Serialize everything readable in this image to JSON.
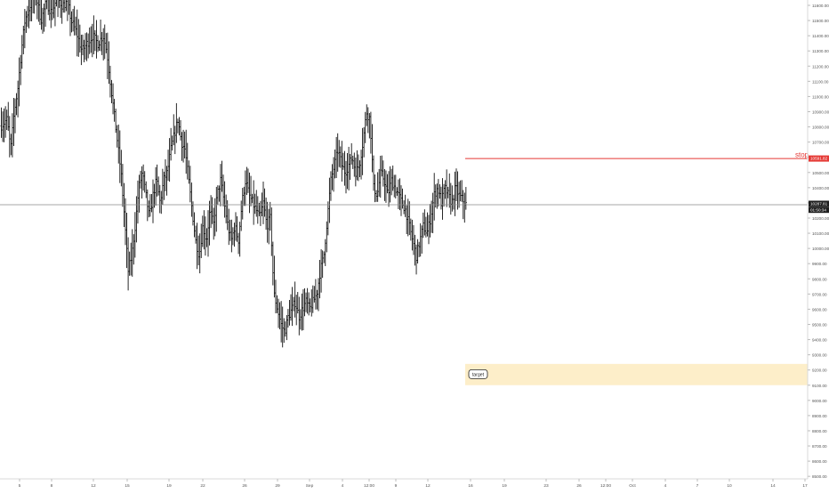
{
  "chart_data": {
    "type": "ohlc",
    "title": "",
    "xlabel": "",
    "ylabel": "",
    "x_tick_labels": [
      "5",
      "8",
      "12",
      "15",
      "19",
      "22",
      "26",
      "29",
      "Sep",
      "4",
      "12:00",
      "9",
      "12",
      "16",
      "19",
      "23",
      "26",
      "12:00",
      "Oct",
      "4",
      "7",
      "10",
      "14",
      "17"
    ],
    "y_tick_labels": [
      "11600.00",
      "11500.00",
      "11400.00",
      "11300.00",
      "11200.00",
      "11100.00",
      "11000.00",
      "10900.00",
      "10800.00",
      "10700.00",
      "10600.00",
      "10500.00",
      "10400.00",
      "10300.00",
      "10200.00",
      "10100.00",
      "10000.00",
      "9900.00",
      "9800.00",
      "9700.00",
      "9600.00",
      "9500.00",
      "9400.00",
      "9300.00",
      "9200.00",
      "9100.00",
      "9000.00",
      "8900.00",
      "8800.00",
      "8700.00",
      "8600.00",
      "8500.00"
    ],
    "ylim": [
      8440,
      11640
    ],
    "price_path": [
      [
        0,
        10800
      ],
      [
        8,
        10850
      ],
      [
        12,
        10650
      ],
      [
        16,
        10900
      ],
      [
        20,
        11050
      ],
      [
        24,
        11300
      ],
      [
        28,
        11500
      ],
      [
        34,
        11600
      ],
      [
        40,
        11680
      ],
      [
        46,
        11500
      ],
      [
        52,
        11620
      ],
      [
        58,
        11550
      ],
      [
        64,
        11650
      ],
      [
        70,
        11600
      ],
      [
        76,
        11620
      ],
      [
        80,
        11500
      ],
      [
        86,
        11420
      ],
      [
        92,
        11300
      ],
      [
        98,
        11350
      ],
      [
        104,
        11400
      ],
      [
        110,
        11350
      ],
      [
        116,
        11400
      ],
      [
        120,
        11300
      ],
      [
        124,
        11100
      ],
      [
        128,
        10900
      ],
      [
        132,
        10700
      ],
      [
        136,
        10500
      ],
      [
        140,
        10200
      ],
      [
        144,
        9850
      ],
      [
        148,
        9950
      ],
      [
        152,
        10150
      ],
      [
        156,
        10400
      ],
      [
        160,
        10500
      ],
      [
        164,
        10350
      ],
      [
        168,
        10200
      ],
      [
        172,
        10350
      ],
      [
        176,
        10450
      ],
      [
        180,
        10300
      ],
      [
        184,
        10450
      ],
      [
        188,
        10500
      ],
      [
        192,
        10650
      ],
      [
        196,
        10750
      ],
      [
        200,
        10850
      ],
      [
        204,
        10700
      ],
      [
        208,
        10650
      ],
      [
        212,
        10450
      ],
      [
        216,
        10250
      ],
      [
        220,
        10050
      ],
      [
        224,
        9950
      ],
      [
        228,
        10150
      ],
      [
        232,
        10050
      ],
      [
        236,
        10250
      ],
      [
        240,
        10150
      ],
      [
        244,
        10350
      ],
      [
        248,
        10450
      ],
      [
        252,
        10300
      ],
      [
        256,
        10150
      ],
      [
        260,
        10050
      ],
      [
        264,
        10150
      ],
      [
        268,
        10050
      ],
      [
        272,
        10300
      ],
      [
        276,
        10450
      ],
      [
        280,
        10350
      ],
      [
        284,
        10300
      ],
      [
        288,
        10250
      ],
      [
        292,
        10200
      ],
      [
        296,
        10300
      ],
      [
        300,
        10150
      ],
      [
        304,
        10200
      ],
      [
        308,
        9700
      ],
      [
        312,
        9600
      ],
      [
        316,
        9500
      ],
      [
        320,
        9450
      ],
      [
        324,
        9550
      ],
      [
        328,
        9600
      ],
      [
        332,
        9650
      ],
      [
        336,
        9550
      ],
      [
        340,
        9600
      ],
      [
        344,
        9650
      ],
      [
        348,
        9600
      ],
      [
        352,
        9650
      ],
      [
        356,
        9700
      ],
      [
        360,
        9850
      ],
      [
        364,
        9950
      ],
      [
        368,
        10200
      ],
      [
        372,
        10450
      ],
      [
        376,
        10550
      ],
      [
        380,
        10650
      ],
      [
        384,
        10550
      ],
      [
        388,
        10500
      ],
      [
        392,
        10550
      ],
      [
        396,
        10600
      ],
      [
        400,
        10500
      ],
      [
        404,
        10550
      ],
      [
        408,
        10700
      ],
      [
        412,
        10900
      ],
      [
        416,
        10850
      ],
      [
        420,
        10400
      ],
      [
        424,
        10350
      ],
      [
        428,
        10500
      ],
      [
        432,
        10450
      ],
      [
        436,
        10350
      ],
      [
        440,
        10450
      ],
      [
        444,
        10400
      ],
      [
        448,
        10350
      ],
      [
        452,
        10300
      ],
      [
        456,
        10250
      ],
      [
        460,
        10150
      ],
      [
        464,
        10050
      ],
      [
        468,
        9950
      ],
      [
        472,
        10050
      ],
      [
        476,
        10150
      ],
      [
        480,
        10100
      ],
      [
        484,
        10200
      ],
      [
        488,
        10350
      ],
      [
        492,
        10400
      ],
      [
        496,
        10300
      ],
      [
        500,
        10400
      ],
      [
        504,
        10350
      ],
      [
        508,
        10300
      ],
      [
        512,
        10400
      ],
      [
        516,
        10350
      ],
      [
        520,
        10320
      ],
      [
        524,
        10290
      ]
    ],
    "annotations": {
      "stop": {
        "label": "stop",
        "price": 10591.82,
        "price_label": "10591.82",
        "color": "#e53935"
      },
      "target": {
        "label": "target",
        "zone": [
          9100,
          9240
        ],
        "fill": "#fdeec9"
      },
      "crosshair": {
        "price_label": "10287.81",
        "time_label": "01:50:34",
        "price": 10287.81
      }
    }
  }
}
